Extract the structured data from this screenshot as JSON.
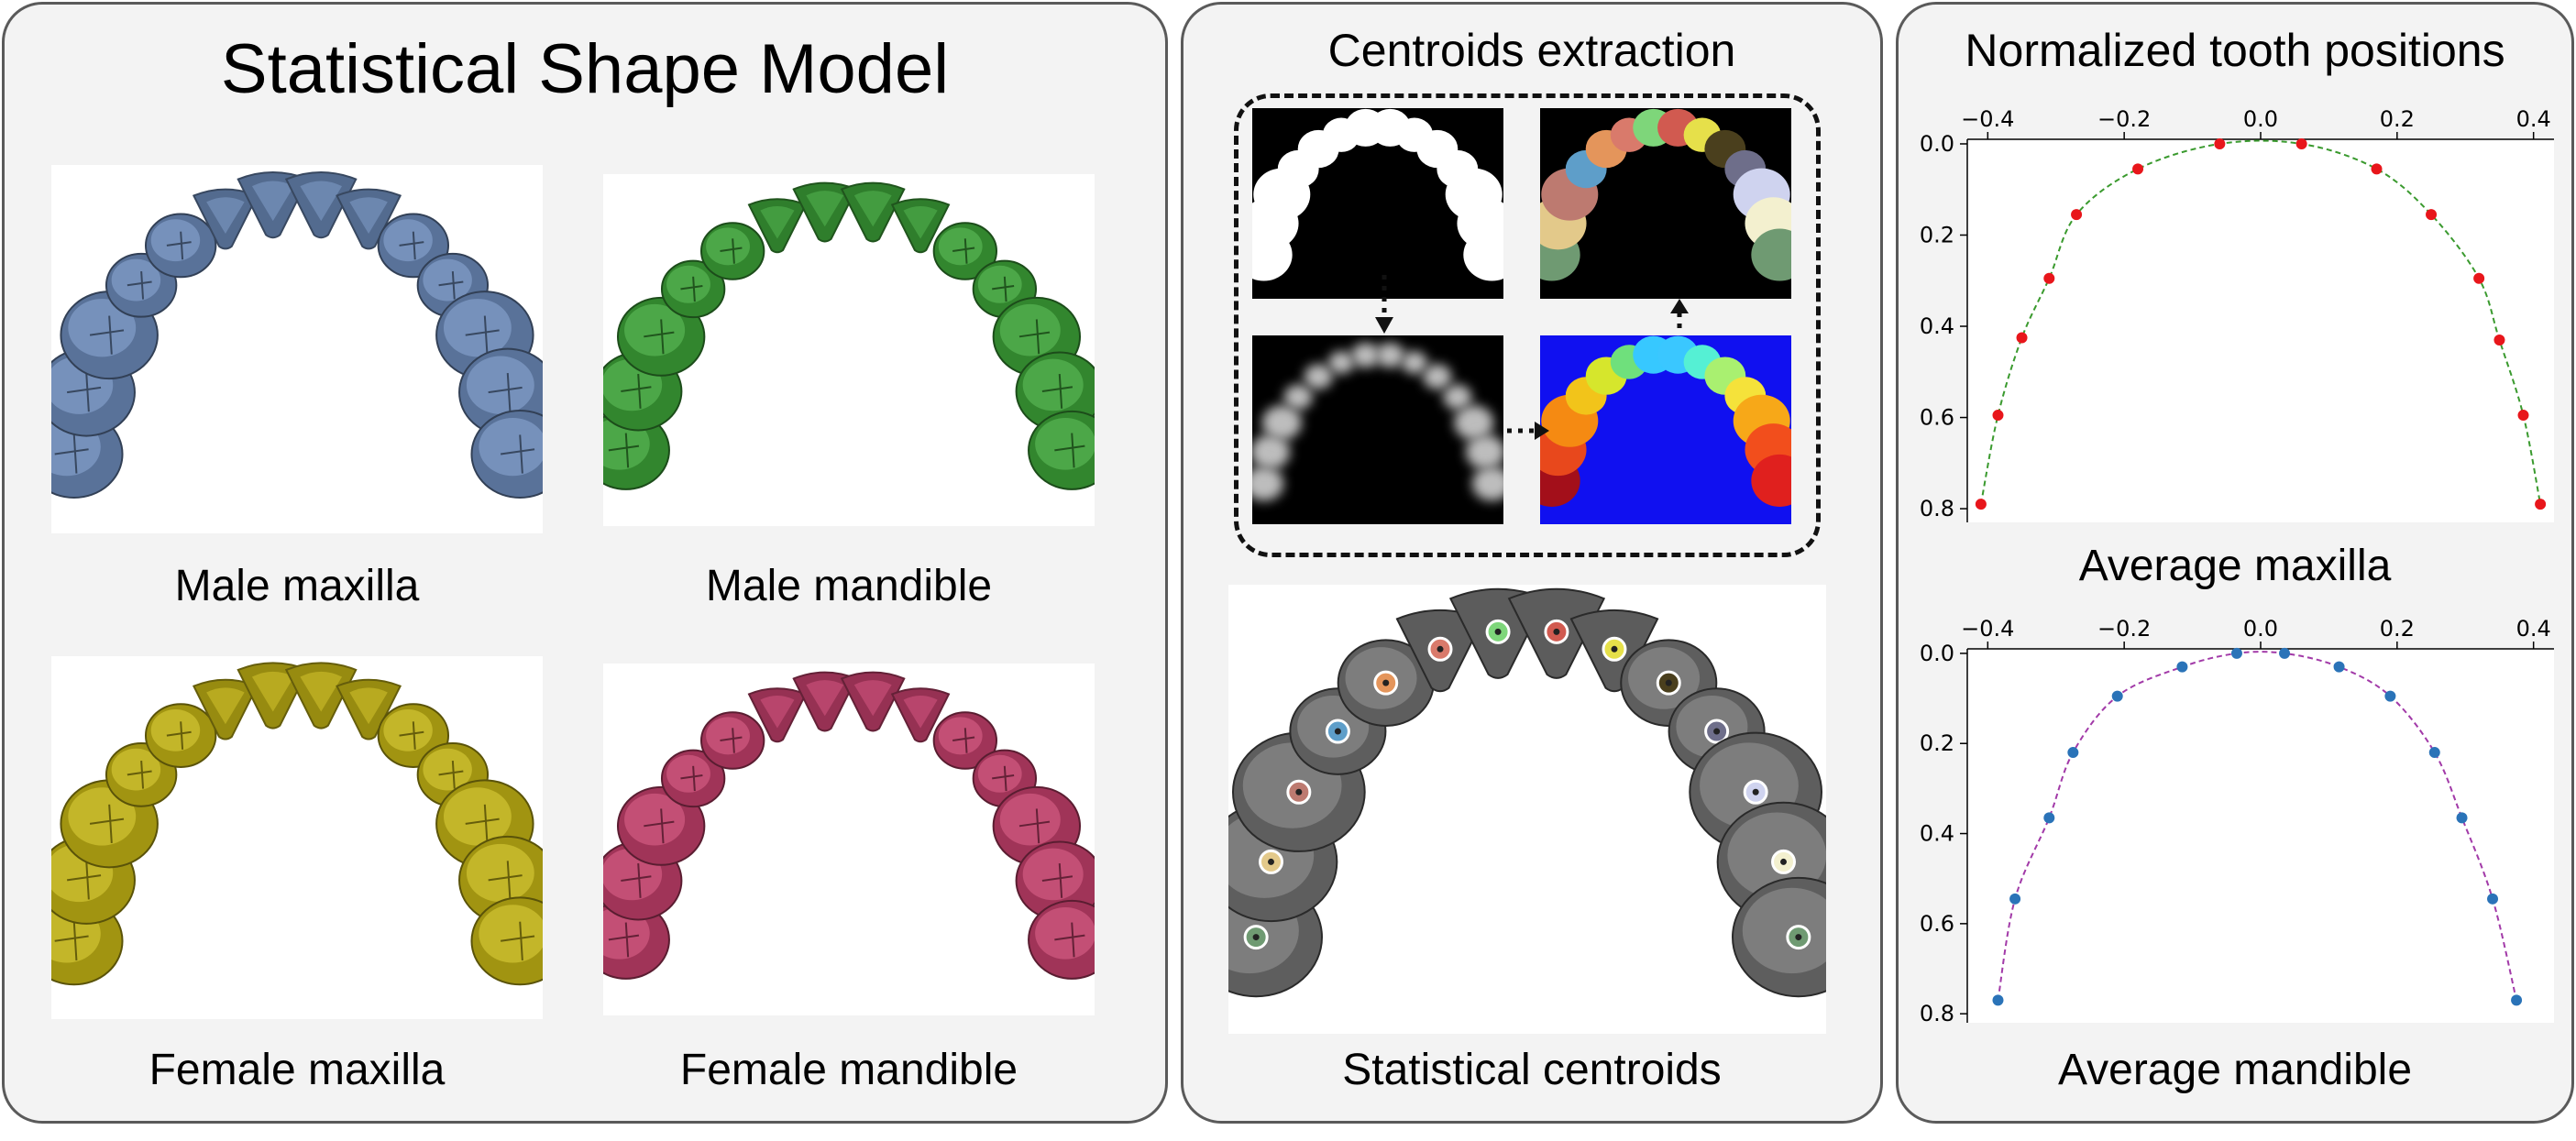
{
  "panel_ssm": {
    "title": "Statistical Shape Model",
    "labels": {
      "male_maxilla": "Male maxilla",
      "male_mandible": "Male mandible",
      "female_maxilla": "Female maxilla",
      "female_mandible": "Female mandible"
    },
    "colors": {
      "male_maxilla": "#6f8fbf",
      "male_mandible": "#3fa83a",
      "female_maxilla": "#c9b915",
      "female_mandible": "#c8416e"
    }
  },
  "panel_centroids": {
    "title": "Centroids extraction",
    "caption": "Statistical centroids",
    "label_colors": [
      "#a30f1a",
      "#e8481c",
      "#f58a12",
      "#f2c41a",
      "#d6e62c",
      "#6fe07c",
      "#37c8ff",
      "#2d7cff",
      "#3ac7ff",
      "#55f0d4",
      "#a9f070",
      "#f5e23a",
      "#f7a818",
      "#f24e1c",
      "#e0201e",
      "#9b0e12"
    ],
    "region_colors": [
      "#6f9a72",
      "#e3c98a",
      "#bd7a70",
      "#5e9ec9",
      "#e4955b",
      "#d97a6b",
      "#7ed67a",
      "#d15a50",
      "#e6e04a",
      "#4a3f1d",
      "#6e6e8a",
      "#cfd3ef",
      "#f3f0cf"
    ]
  },
  "panel_positions": {
    "title": "Normalized tooth positions",
    "captions": {
      "maxilla": "Average maxilla",
      "mandible": "Average mandible"
    }
  },
  "chart_data": [
    {
      "type": "line",
      "title": "Average maxilla",
      "xlim": [
        -0.43,
        0.43
      ],
      "ylim": [
        0.83,
        -0.01
      ],
      "xticks": [
        "−0.4",
        "−0.2",
        "0.0",
        "0.2",
        "0.4"
      ],
      "yticks": [
        "0.0",
        "0.2",
        "0.4",
        "0.6",
        "0.8"
      ],
      "x_axis_position": "top",
      "y_inverted": true,
      "marker_color": "#e8161b",
      "line_color": "#3a9a2e",
      "line_style": "dashed",
      "x": [
        -0.41,
        -0.385,
        -0.35,
        -0.31,
        -0.27,
        -0.18,
        -0.06,
        0.06,
        0.17,
        0.25,
        0.32,
        0.35,
        0.385,
        0.41
      ],
      "y": [
        0.79,
        0.595,
        0.425,
        0.295,
        0.155,
        0.055,
        0.0,
        0.0,
        0.055,
        0.155,
        0.295,
        0.43,
        0.595,
        0.79
      ]
    },
    {
      "type": "line",
      "title": "Average mandible",
      "xlim": [
        -0.43,
        0.43
      ],
      "ylim": [
        0.82,
        -0.01
      ],
      "xticks": [
        "−0.4",
        "−0.2",
        "0.0",
        "0.2",
        "0.4"
      ],
      "yticks": [
        "0.0",
        "0.2",
        "0.4",
        "0.6",
        "0.8"
      ],
      "x_axis_position": "top",
      "y_inverted": true,
      "marker_color": "#2a73b8",
      "line_color": "#a23aa8",
      "line_style": "dashed",
      "x": [
        -0.385,
        -0.36,
        -0.31,
        -0.275,
        -0.21,
        -0.115,
        -0.035,
        0.035,
        0.115,
        0.19,
        0.255,
        0.295,
        0.34,
        0.375
      ],
      "y": [
        0.77,
        0.545,
        0.365,
        0.22,
        0.095,
        0.03,
        0.0,
        0.0,
        0.03,
        0.095,
        0.22,
        0.365,
        0.545,
        0.77
      ]
    }
  ]
}
